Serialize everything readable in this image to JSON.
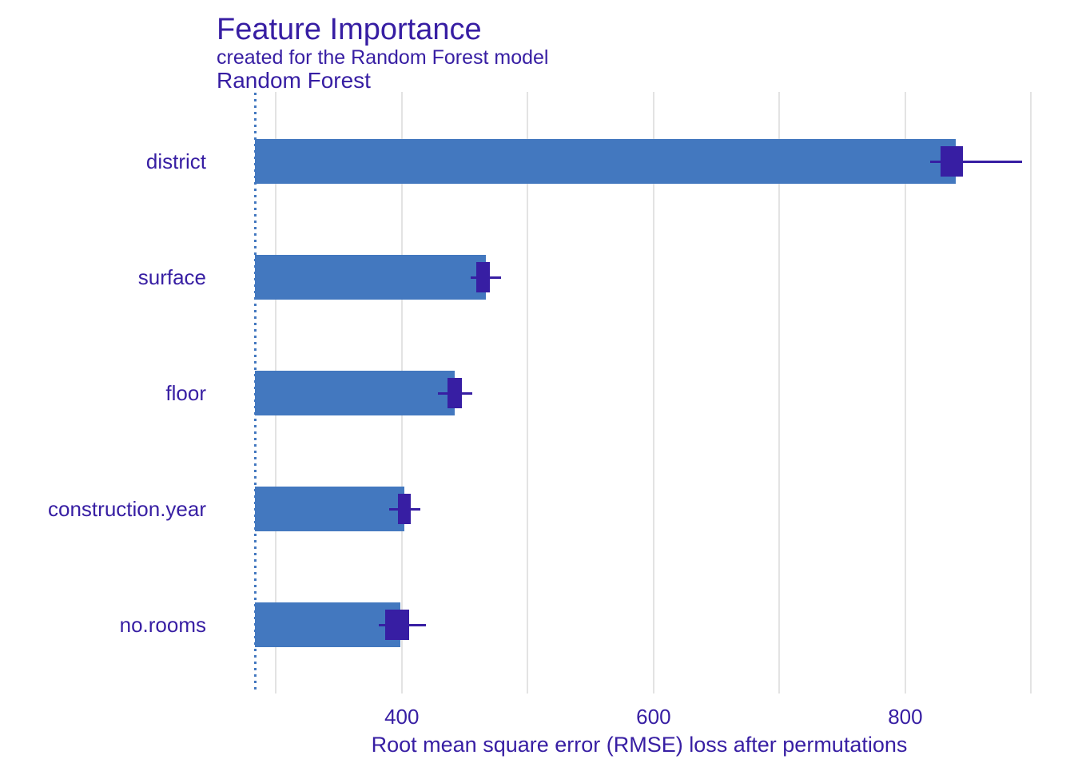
{
  "header": {
    "title": "Feature Importance",
    "subtitle": "created for the Random Forest model",
    "facet_label": "Random Forest"
  },
  "chart_data": {
    "type": "bar",
    "orientation": "horizontal",
    "title": "Feature Importance",
    "subtitle": "created for the Random Forest model",
    "facet": "Random Forest",
    "xlabel": "Root mean square error (RMSE) loss after permutations",
    "ylabel": "",
    "xlim": [
      270,
      934
    ],
    "x_major_ticks": [
      400,
      600,
      800
    ],
    "x_gridlines": [
      300,
      400,
      500,
      600,
      700,
      800,
      900
    ],
    "grid": "vertical-only",
    "legend": "none",
    "baseline_full_model_rmse": 283.4,
    "categories": [
      "district",
      "surface",
      "floor",
      "construction.year",
      "no.rooms"
    ],
    "bar_values": [
      840,
      467,
      442,
      402,
      399
    ],
    "boxplots": [
      {
        "lo": 820,
        "q1": 828,
        "q3": 846,
        "hi": 893
      },
      {
        "lo": 455,
        "q1": 459,
        "q3": 470,
        "hi": 479
      },
      {
        "lo": 429,
        "q1": 436,
        "q3": 448,
        "hi": 456
      },
      {
        "lo": 390,
        "q1": 397,
        "q3": 407,
        "hi": 415
      },
      {
        "lo": 382,
        "q1": 387,
        "q3": 406,
        "hi": 419
      }
    ],
    "colors": {
      "bar": "#4378bf",
      "box": "#371ea3",
      "text": "#371ea3",
      "gridline": "#e3e3e3",
      "background": "#ffffff"
    }
  }
}
